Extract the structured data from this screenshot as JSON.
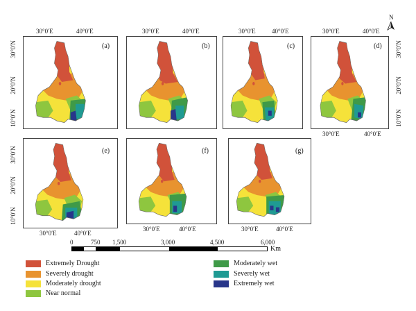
{
  "panels": [
    "(a)",
    "(b)",
    "(c)",
    "(d)",
    "(e)",
    "(f)",
    "(g)"
  ],
  "axes": {
    "lon_left": "30°0′E",
    "lon_right": "40°0′E",
    "lat_top": "30°0′N",
    "lat_mid": "20°0′N",
    "lat_bot": "10°0′N"
  },
  "north": "N",
  "scale": {
    "ticks": [
      "0",
      "750",
      "1,500",
      "3,000",
      "4,500",
      "6,000"
    ],
    "unit": "Km"
  },
  "legend": [
    {
      "label": "Extremely Drought",
      "color": "#d1523a"
    },
    {
      "label": "Severely drought",
      "color": "#e8932f"
    },
    {
      "label": "Moderately drought",
      "color": "#f5e23a"
    },
    {
      "label": "Near normal",
      "color": "#8ec63f"
    },
    {
      "label": "Moderately wet",
      "color": "#3f9a48"
    },
    {
      "label": "Severely wet",
      "color": "#1f9a93"
    },
    {
      "label": "Extremely wet",
      "color": "#28368a"
    }
  ]
}
